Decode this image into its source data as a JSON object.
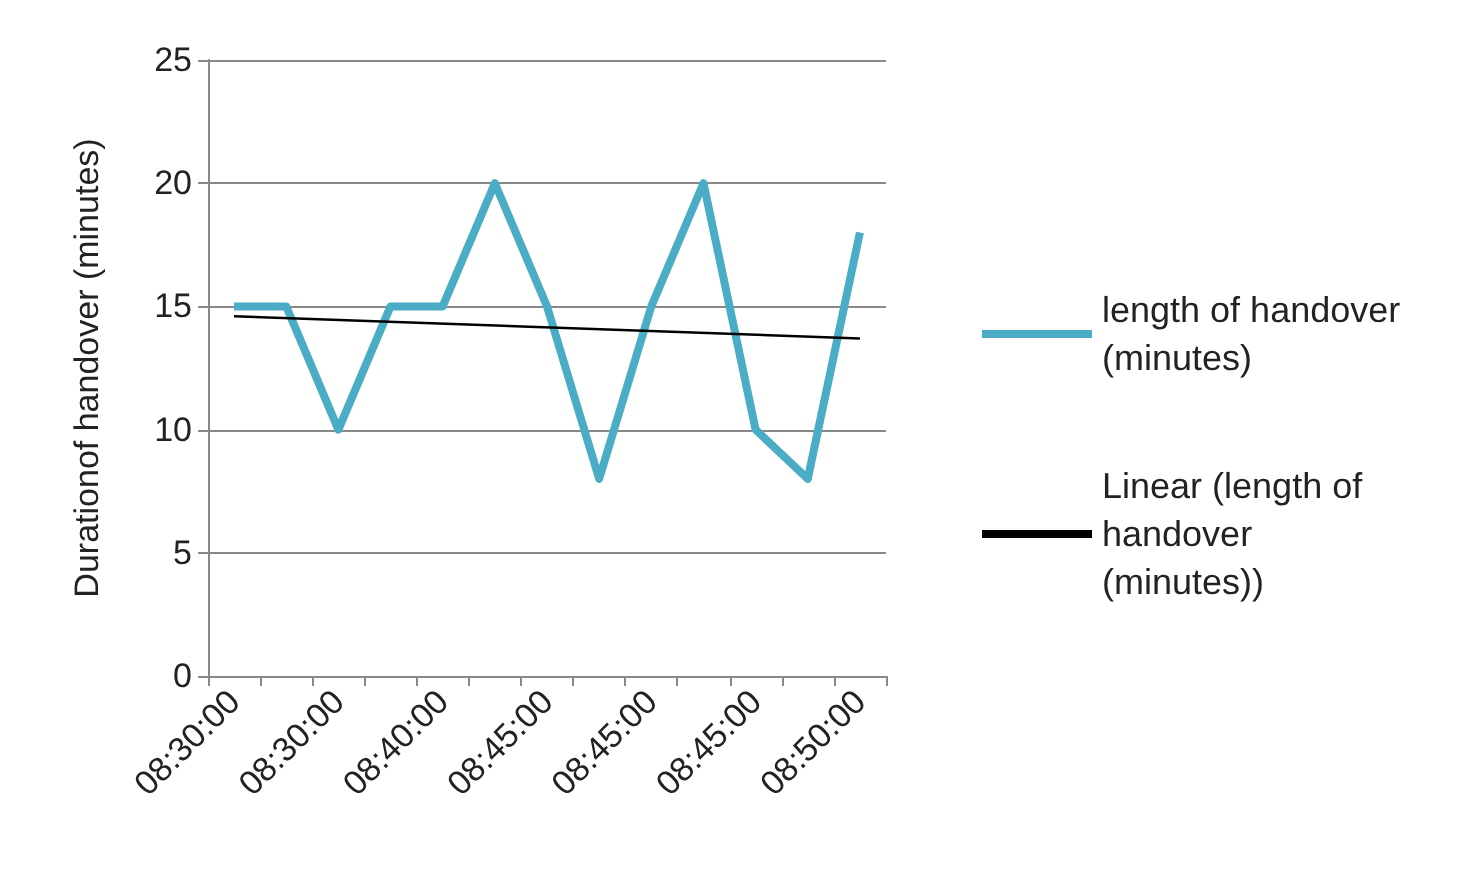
{
  "chart_data": {
    "type": "line",
    "ylabel": "Durationof handover (minutes)",
    "categories": [
      "08:30:00",
      null,
      "08:30:00",
      null,
      "08:40:00",
      null,
      "08:45:00",
      null,
      "08:45:00",
      null,
      "08:45:00",
      null,
      "08:50:00"
    ],
    "series": [
      {
        "name": "length of handover (minutes)",
        "color": "#4bacc6",
        "values": [
          15,
          15,
          10,
          15,
          15,
          20,
          15,
          8,
          15,
          20,
          10,
          8,
          18
        ]
      },
      {
        "name": "Linear (length of handover (minutes))",
        "color": "#000000",
        "values": [
          14.6,
          null,
          null,
          null,
          null,
          null,
          null,
          null,
          null,
          null,
          null,
          null,
          13.7
        ]
      }
    ],
    "ylim": [
      0,
      25
    ],
    "yticks": [
      0,
      5,
      10,
      15,
      20,
      25
    ],
    "grid": "y",
    "legend": "right",
    "marker": "none"
  }
}
